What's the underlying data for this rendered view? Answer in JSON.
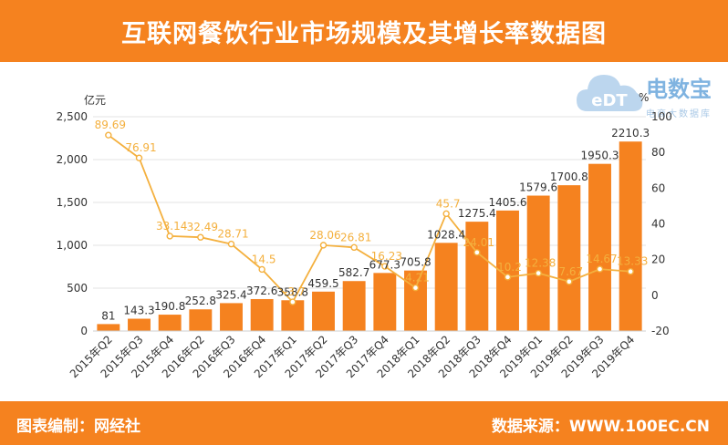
{
  "title": "互联网餐饮行业市场规模及其增长率数据图",
  "footer": {
    "left": "图表编制：网经社",
    "right": "数据来源：WWW.100EC.CN"
  },
  "logo": {
    "text": "电数宝",
    "sub": "电商大数据库",
    "badge": "eDT"
  },
  "colors": {
    "accent": "#f5821f",
    "bar": "#f5821f",
    "line": "#f4b03e",
    "white": "#ffffff"
  },
  "chart_data": {
    "type": "bar",
    "categories": [
      "2015年Q2",
      "2015年Q3",
      "2015年Q4",
      "2016年Q2",
      "2016年Q3",
      "2016年Q4",
      "2017年Q1",
      "2017年Q2",
      "2017年Q3",
      "2017年Q4",
      "2018年Q1",
      "2018年Q2",
      "2018年Q3",
      "2018年Q4",
      "2019年Q1",
      "2019年Q2",
      "2019年Q3",
      "2019年Q4"
    ],
    "series": [
      {
        "type": "bar",
        "axis": "left",
        "values": [
          81,
          143.3,
          190.8,
          252.8,
          325.4,
          372.6,
          358.8,
          459.5,
          582.7,
          677.3,
          705.8,
          1028.4,
          1275.4,
          1405.6,
          1579.6,
          1700.8,
          1950.3,
          2210.3
        ],
        "labels": [
          "81",
          "143.3",
          "190.8",
          "252.8",
          "325.4",
          "372.6",
          "358.8",
          "459.5",
          "582.7",
          "677.3",
          "705.8",
          "1028.4",
          "1275.4",
          "1405.6",
          "1579.6",
          "1700.8",
          "1950.3",
          "2210.3"
        ]
      },
      {
        "type": "line",
        "axis": "right",
        "values": [
          89.69,
          76.91,
          33.14,
          32.49,
          28.71,
          14.5,
          -3.7,
          28.06,
          26.81,
          16.23,
          4.21,
          45.7,
          24.01,
          10.2,
          12.38,
          7.67,
          14.67,
          13.33
        ],
        "labels": [
          "89.69",
          "76.91",
          "33.14",
          "32.49",
          "28.71",
          "14.5",
          "-3.7",
          "28.06",
          "26.81",
          "16.23",
          "4.21",
          "45.7",
          "24.01",
          "10.2",
          "12.38",
          "7.67",
          "14.67",
          "13.33"
        ]
      }
    ],
    "y_left": {
      "unit": "亿元",
      "min": 0,
      "max": 2500,
      "ticks": [
        "0",
        "500",
        "1,000",
        "1,500",
        "2,000",
        "2,500"
      ],
      "tickValues": [
        0,
        500,
        1000,
        1500,
        2000,
        2500
      ]
    },
    "y_right": {
      "unit": "%",
      "min": -20,
      "max": 100,
      "ticks": [
        "-20",
        "0",
        "20",
        "40",
        "60",
        "80",
        "100"
      ],
      "tickValues": [
        -20,
        0,
        20,
        40,
        60,
        80,
        100
      ]
    },
    "grid": true,
    "legend": "none"
  }
}
